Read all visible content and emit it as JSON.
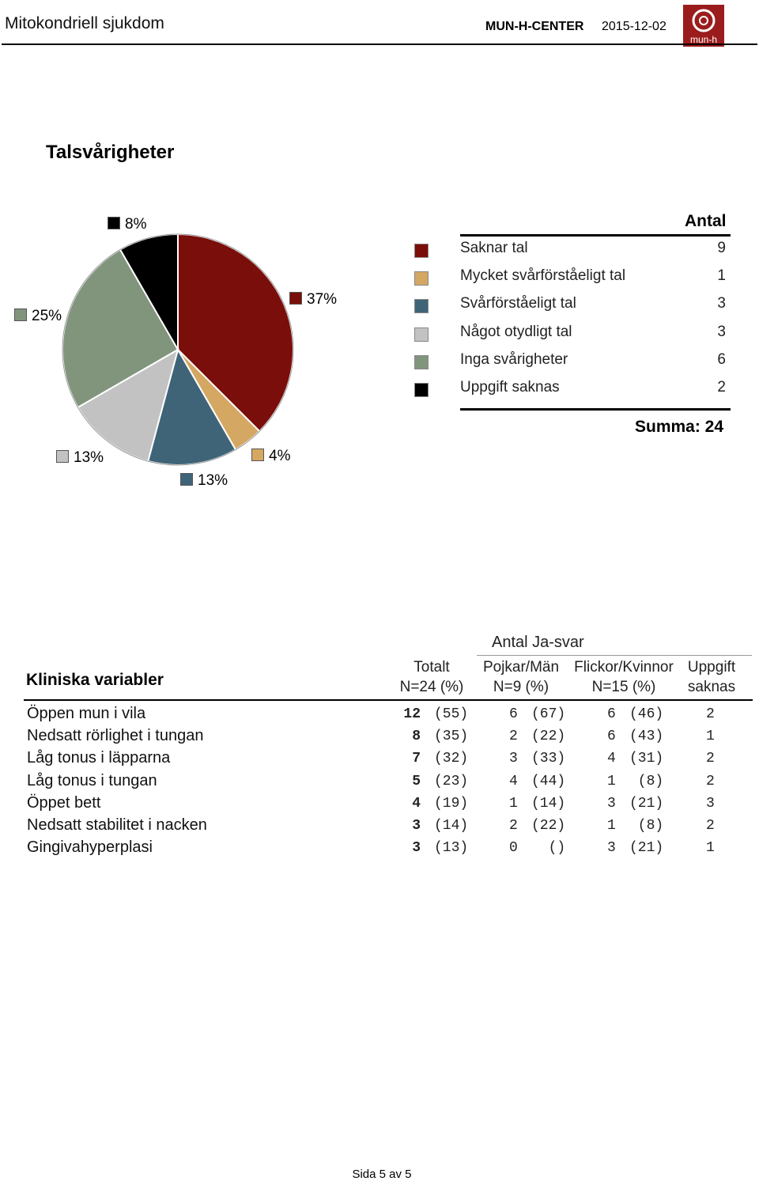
{
  "header": {
    "title": "Mitokondriell sjukdom",
    "center": "MUN-H-CENTER",
    "date": "2015-12-02",
    "logo_text": "mun-h"
  },
  "section_title": "Talsvårigheter",
  "legend_table": {
    "header": "Antal",
    "rows": [
      {
        "label": "Saknar tal",
        "count": "9",
        "color": "#7a0e0a"
      },
      {
        "label": "Mycket svårförståeligt tal",
        "count": "1",
        "color": "#d4a763"
      },
      {
        "label": "Svårförståeligt tal",
        "count": "3",
        "color": "#3f6478"
      },
      {
        "label": "Något otydligt tal",
        "count": "3",
        "color": "#c2c2c2"
      },
      {
        "label": "Inga svårigheter",
        "count": "6",
        "color": "#81957d"
      },
      {
        "label": "Uppgift saknas",
        "count": "2",
        "color": "#000000"
      }
    ],
    "sum": "Summa: 24"
  },
  "chart_data": {
    "type": "pie",
    "title": "Talsvårigheter",
    "slices": [
      {
        "label": "Saknar tal",
        "value": 9,
        "percent_label": "37%",
        "color": "#7a0e0a"
      },
      {
        "label": "Mycket svårförståeligt tal",
        "value": 1,
        "percent_label": "4%",
        "color": "#d4a763"
      },
      {
        "label": "Svårförståeligt tal",
        "value": 3,
        "percent_label": "13%",
        "color": "#3f6478"
      },
      {
        "label": "Något otydligt tal",
        "value": 3,
        "percent_label": "13%",
        "color": "#c2c2c2"
      },
      {
        "label": "Inga svårigheter",
        "value": 6,
        "percent_label": "25%",
        "color": "#81957d"
      },
      {
        "label": "Uppgift saknas",
        "value": 2,
        "percent_label": "8%",
        "color": "#000000"
      }
    ],
    "total": 24
  },
  "clinical": {
    "title": "Kliniska variabler",
    "group_header": "Antal Ja-svar",
    "col_total": [
      "Totalt",
      "N=24 (%)"
    ],
    "col_boys": [
      "Pojkar/Män",
      "N=9 (%)"
    ],
    "col_girls": [
      "Flickor/Kvinnor",
      "N=15 (%)"
    ],
    "col_missing": [
      "Uppgift",
      "saknas"
    ],
    "rows": [
      {
        "label": "Öppen mun i vila",
        "total": "12",
        "total_pct": "(55)",
        "boys": "6",
        "boys_pct": "(67)",
        "girls": "6",
        "girls_pct": "(46)",
        "missing": "2"
      },
      {
        "label": "Nedsatt rörlighet i tungan",
        "total": "8",
        "total_pct": "(35)",
        "boys": "2",
        "boys_pct": "(22)",
        "girls": "6",
        "girls_pct": "(43)",
        "missing": "1"
      },
      {
        "label": "Låg tonus i läpparna",
        "total": "7",
        "total_pct": "(32)",
        "boys": "3",
        "boys_pct": "(33)",
        "girls": "4",
        "girls_pct": "(31)",
        "missing": "2"
      },
      {
        "label": "Låg tonus i tungan",
        "total": "5",
        "total_pct": "(23)",
        "boys": "4",
        "boys_pct": "(44)",
        "girls": "1",
        "girls_pct": " (8)",
        "missing": "2"
      },
      {
        "label": "Öppet bett",
        "total": "4",
        "total_pct": "(19)",
        "boys": "1",
        "boys_pct": "(14)",
        "girls": "3",
        "girls_pct": "(21)",
        "missing": "3"
      },
      {
        "label": "Nedsatt stabilitet i nacken",
        "total": "3",
        "total_pct": "(14)",
        "boys": "2",
        "boys_pct": "(22)",
        "girls": "1",
        "girls_pct": " (8)",
        "missing": "2"
      },
      {
        "label": "Gingivahyperplasi",
        "total": "3",
        "total_pct": "(13)",
        "boys": "0",
        "boys_pct": "  ()",
        "girls": "3",
        "girls_pct": "(21)",
        "missing": "1"
      }
    ]
  },
  "footer": "Sida 5 av 5"
}
